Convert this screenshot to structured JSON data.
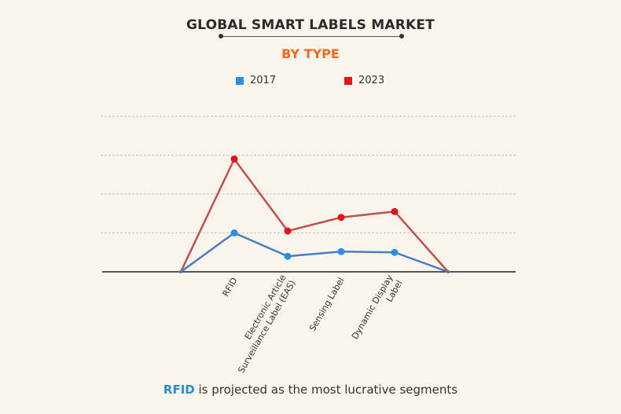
{
  "title": "GLOBAL SMART LABELS MARKET",
  "subtitle": "BY TYPE",
  "footer": {
    "highlight": "RFID",
    "text": " is projected as the most lucrative segments"
  },
  "colors": {
    "series_2017": "#2b8fe0",
    "series_2023": "#e0141b",
    "line_2017": "#4a7ec0",
    "line_2023": "#c0504d",
    "subtitle": "#ef6a1c",
    "footer_accent": "#2a8fc7"
  },
  "chart_data": {
    "type": "line",
    "title": "GLOBAL SMART LABELS MARKET",
    "subtitle": "BY TYPE",
    "categories": [
      "RFID",
      "Electronic Article Surveillance Label (EAS)",
      "Sensing Label",
      "Dynamic Display Label"
    ],
    "series": [
      {
        "name": "2017",
        "values": [
          1.0,
          0.4,
          0.52,
          0.5
        ]
      },
      {
        "name": "2023",
        "values": [
          2.9,
          1.05,
          1.4,
          1.55
        ]
      }
    ],
    "line_endpoints_at_zero": true,
    "ylim": [
      0,
      4
    ],
    "grid": true,
    "y_tick_labels_shown": false,
    "legend": "top-center"
  }
}
